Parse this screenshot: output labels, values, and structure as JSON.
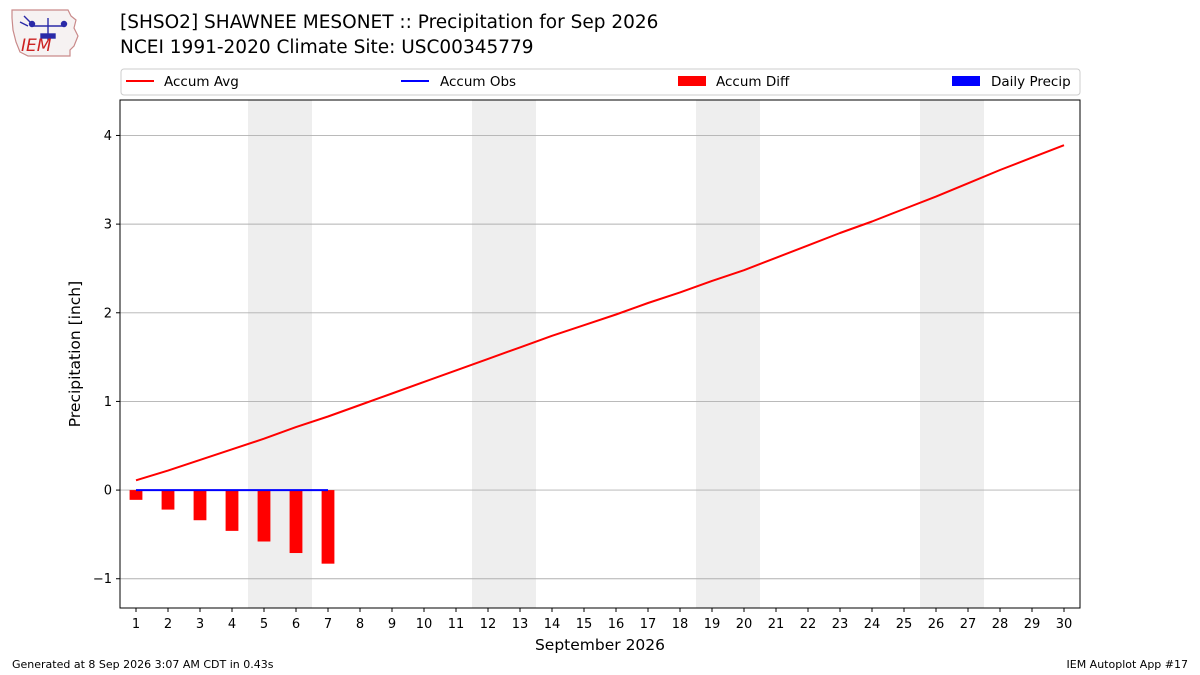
{
  "header": {
    "logo_text": "IEM",
    "title_line1": "[SHSO2] SHAWNEE MESONET :: Precipitation for Sep 2026",
    "title_line2": "NCEI 1991-2020 Climate Site: USC00345779"
  },
  "footer": {
    "generated": "Generated at 8 Sep 2026 3:07 AM CDT in 0.43s",
    "app": "IEM Autoplot App #17"
  },
  "colors": {
    "accum_avg": "#ff0000",
    "accum_obs": "#0000ff",
    "accum_diff": "#ff0000",
    "daily_precip": "#0000ff",
    "weekend_shade": "#eeeeee",
    "grid": "#b0b0b0"
  },
  "chart_data": {
    "type": "line",
    "xlabel": "September 2026",
    "ylabel": "Precipitation [inch]",
    "xlim": [
      0.5,
      30.5
    ],
    "ylim": [
      -1.33,
      4.4
    ],
    "yticks": [
      -1,
      0,
      1,
      2,
      3,
      4
    ],
    "ytick_labels": [
      "−1",
      "0",
      "1",
      "2",
      "3",
      "4"
    ],
    "xticks": [
      1,
      2,
      3,
      4,
      5,
      6,
      7,
      8,
      9,
      10,
      11,
      12,
      13,
      14,
      15,
      16,
      17,
      18,
      19,
      20,
      21,
      22,
      23,
      24,
      25,
      26,
      27,
      28,
      29,
      30
    ],
    "grid": "horizontal",
    "legend_position": "top",
    "weekend_days": [
      5,
      6,
      12,
      13,
      19,
      20,
      26,
      27
    ],
    "legend": [
      {
        "label": "Accum Avg",
        "kind": "line",
        "color": "#ff0000"
      },
      {
        "label": "Accum Obs",
        "kind": "line",
        "color": "#0000ff"
      },
      {
        "label": "Accum Diff",
        "kind": "bar",
        "color": "#ff0000"
      },
      {
        "label": "Daily Precip",
        "kind": "bar",
        "color": "#0000ff"
      }
    ],
    "series": [
      {
        "name": "Accum Avg",
        "type": "line",
        "x": [
          1,
          2,
          3,
          4,
          5,
          6,
          7,
          8,
          9,
          10,
          11,
          12,
          13,
          14,
          15,
          16,
          17,
          18,
          19,
          20,
          21,
          22,
          23,
          24,
          25,
          26,
          27,
          28,
          29,
          30
        ],
        "values": [
          0.11,
          0.22,
          0.34,
          0.46,
          0.58,
          0.71,
          0.83,
          0.96,
          1.09,
          1.22,
          1.35,
          1.48,
          1.61,
          1.74,
          1.86,
          1.98,
          2.11,
          2.23,
          2.36,
          2.48,
          2.62,
          2.76,
          2.9,
          3.03,
          3.17,
          3.31,
          3.46,
          3.61,
          3.75,
          3.89
        ]
      },
      {
        "name": "Accum Obs",
        "type": "line",
        "x": [
          1,
          2,
          3,
          4,
          5,
          6,
          7
        ],
        "values": [
          0,
          0,
          0,
          0,
          0,
          0,
          0
        ]
      },
      {
        "name": "Accum Diff",
        "type": "bar",
        "x": [
          1,
          2,
          3,
          4,
          5,
          6,
          7
        ],
        "values": [
          -0.11,
          -0.22,
          -0.34,
          -0.46,
          -0.58,
          -0.71,
          -0.83
        ]
      },
      {
        "name": "Daily Precip",
        "type": "bar",
        "x": [
          1,
          2,
          3,
          4,
          5,
          6,
          7
        ],
        "values": [
          0,
          0,
          0,
          0,
          0,
          0,
          0
        ]
      }
    ]
  }
}
